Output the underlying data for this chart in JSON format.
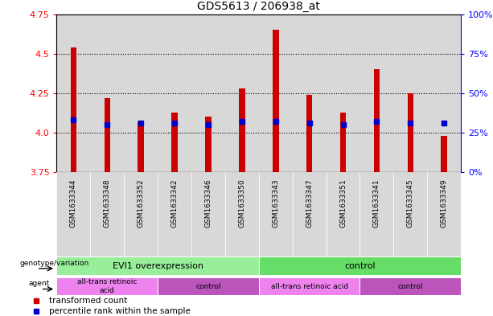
{
  "title": "GDS5613 / 206938_at",
  "samples": [
    "GSM1633344",
    "GSM1633348",
    "GSM1633352",
    "GSM1633342",
    "GSM1633346",
    "GSM1633350",
    "GSM1633343",
    "GSM1633347",
    "GSM1633351",
    "GSM1633341",
    "GSM1633345",
    "GSM1633349"
  ],
  "bar_values": [
    4.54,
    4.22,
    4.07,
    4.13,
    4.1,
    4.28,
    4.65,
    4.24,
    4.13,
    4.4,
    4.25,
    3.98
  ],
  "bar_bottom": 3.75,
  "blue_dot_values": [
    4.08,
    4.05,
    4.06,
    4.06,
    4.05,
    4.07,
    4.07,
    4.06,
    4.05,
    4.07,
    4.06,
    4.06
  ],
  "ylim_left": [
    3.75,
    4.75
  ],
  "yticks_left": [
    3.75,
    4.0,
    4.25,
    4.5,
    4.75
  ],
  "ylim_right": [
    0,
    100
  ],
  "yticks_right": [
    0,
    25,
    50,
    75,
    100
  ],
  "ytick_labels_right": [
    "0%",
    "25%",
    "50%",
    "75%",
    "100%"
  ],
  "bar_color": "#CC0000",
  "dot_color": "#0000CC",
  "background_color": "#ffffff",
  "column_bg_color": "#D8D8D8",
  "genotype_groups": [
    {
      "label": "EVI1 overexpression",
      "start": 0,
      "end": 6,
      "color": "#99EE99"
    },
    {
      "label": "control",
      "start": 6,
      "end": 12,
      "color": "#66DD66"
    }
  ],
  "agent_groups": [
    {
      "label": "all-trans retinoic\nacid",
      "start": 0,
      "end": 3,
      "color": "#EE82EE"
    },
    {
      "label": "control",
      "start": 3,
      "end": 6,
      "color": "#CC66CC"
    },
    {
      "label": "all-trans retinoic acid",
      "start": 6,
      "end": 9,
      "color": "#EE82EE"
    },
    {
      "label": "control",
      "start": 9,
      "end": 12,
      "color": "#CC66CC"
    }
  ],
  "legend_items": [
    {
      "label": "transformed count",
      "color": "#CC0000"
    },
    {
      "label": "percentile rank within the sample",
      "color": "#0000CC"
    }
  ],
  "left_label_genotype": "genotype/variation",
  "left_label_agent": "agent",
  "bar_width": 0.18
}
